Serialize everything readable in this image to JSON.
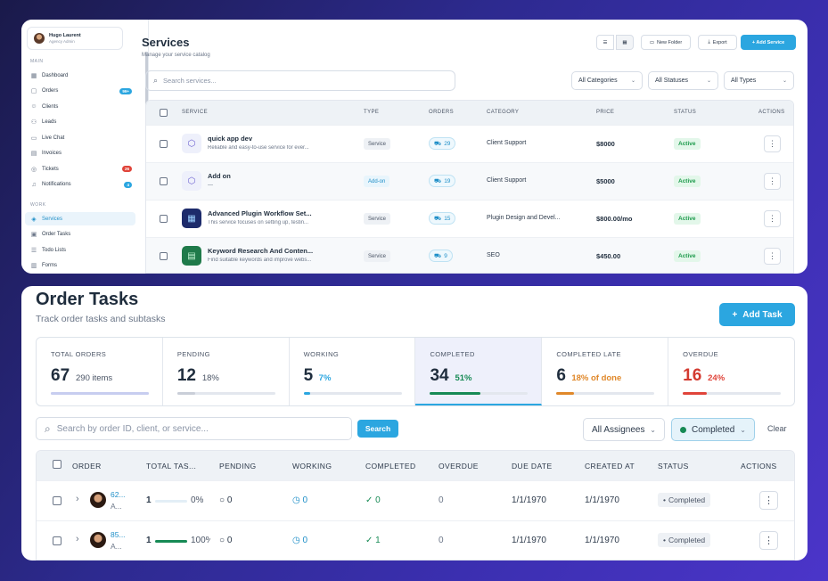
{
  "services_panel": {
    "user": {
      "name": "Hugo Laurent",
      "role": "Agency Admin"
    },
    "sections": {
      "main": "MAIN",
      "work": "WORK"
    },
    "nav_main": [
      {
        "label": "Dashboard",
        "icon": "grid-icon"
      },
      {
        "label": "Orders",
        "icon": "box-icon",
        "badge": "99+",
        "badge_color": "#2ba6e0"
      },
      {
        "label": "Clients",
        "icon": "users-icon"
      },
      {
        "label": "Leads",
        "icon": "user-plus-icon"
      },
      {
        "label": "Live Chat",
        "icon": "chat-icon"
      },
      {
        "label": "Invoices",
        "icon": "invoice-icon"
      },
      {
        "label": "Tickets",
        "icon": "ticket-icon",
        "badge": "26",
        "badge_color": "#e0443a"
      },
      {
        "label": "Notifications",
        "icon": "bell-icon",
        "badge": "4",
        "badge_color": "#2ba6e0"
      }
    ],
    "nav_work": [
      {
        "label": "Services",
        "icon": "cube-icon",
        "active": true
      },
      {
        "label": "Order Tasks",
        "icon": "clipboard-icon"
      },
      {
        "label": "Todo Lists",
        "icon": "checklist-icon"
      },
      {
        "label": "Forms",
        "icon": "form-icon"
      }
    ],
    "title": "Services",
    "subtitle": "Manage your service catalog",
    "toolbar": {
      "new_folder": "New Folder",
      "export": "Export",
      "add_service": "+ Add Service"
    },
    "search_placeholder": "Search services...",
    "filters": [
      "All Categories",
      "All Statuses",
      "All Types"
    ],
    "columns": [
      "SERVICE",
      "TYPE",
      "ORDERS",
      "CATEGORY",
      "PRICE",
      "STATUS",
      "ACTIONS"
    ],
    "rows": [
      {
        "name": "quick app dev",
        "desc": "Reliable and easy-to-use service for ever...",
        "type": "Service",
        "orders": "29",
        "category": "Client Support",
        "price": "$8000",
        "status": "Active"
      },
      {
        "name": "Add on",
        "desc": "—",
        "type": "Add-on",
        "orders": "19",
        "category": "Client Support",
        "price": "$5000",
        "status": "Active"
      },
      {
        "name": "Advanced Plugin Workflow Set...",
        "desc": "This service focuses on setting up, testin...",
        "type": "Service",
        "orders": "15",
        "category": "Plugin Design and Devel...",
        "price": "$800.00/mo",
        "status": "Active"
      },
      {
        "name": "Keyword Research And Conten...",
        "desc": "Find suitable keywords and improve webs...",
        "type": "Service",
        "orders": "9",
        "category": "SEO",
        "price": "$450.00",
        "status": "Active"
      }
    ]
  },
  "tasks_panel": {
    "title": "Order Tasks",
    "subtitle": "Track order tasks and subtasks",
    "add_task": "Add Task",
    "stats": [
      {
        "label": "TOTAL ORDERS",
        "value": "67",
        "sub": "290 items",
        "sub_color": "#4b5566",
        "val_color": "#1f2d3d",
        "bar_color": "#c7cdf0",
        "bar_pct": 100
      },
      {
        "label": "PENDING",
        "value": "12",
        "sub": "18%",
        "sub_color": "#4b5566",
        "val_color": "#1f2d3d",
        "bar_color": "#c9ced8",
        "bar_pct": 18
      },
      {
        "label": "WORKING",
        "value": "5",
        "sub": "7%",
        "sub_color": "#2ba6e0",
        "val_color": "#1f2d3d",
        "bar_color": "#2ba6e0",
        "bar_pct": 7
      },
      {
        "label": "COMPLETED",
        "value": "34",
        "sub": "51%",
        "sub_color": "#178a55",
        "val_color": "#1f2d3d",
        "bar_color": "#178a55",
        "bar_pct": 51
      },
      {
        "label": "COMPLETED LATE",
        "value": "6",
        "sub": "18% of done",
        "sub_color": "#e0882a",
        "val_color": "#1f2d3d",
        "bar_color": "#e0882a",
        "bar_pct": 18
      },
      {
        "label": "OVERDUE",
        "value": "16",
        "sub": "24%",
        "sub_color": "#e0443a",
        "val_color": "#d33a30",
        "bar_color": "#e0443a",
        "bar_pct": 24
      }
    ],
    "search_placeholder": "Search by order ID, client, or service...",
    "search_btn": "Search",
    "assignee_filter": "All Assignees",
    "status_filter": "Completed",
    "clear": "Clear",
    "columns": [
      "ORDER",
      "TOTAL TAS...",
      "PENDING",
      "WORKING",
      "COMPLETED",
      "OVERDUE",
      "DUE DATE",
      "CREATED AT",
      "STATUS",
      "ACTIONS"
    ],
    "rows": [
      {
        "id": "62...",
        "client": "A...",
        "total": "1",
        "pct": "0%",
        "pct_value": 0,
        "pending": "0",
        "working": "0",
        "completed": "0",
        "overdue": "0",
        "due": "1/1/1970",
        "created": "1/1/1970",
        "status": "Completed"
      },
      {
        "id": "85...",
        "client": "A...",
        "total": "1",
        "pct": "100%",
        "pct_value": 100,
        "pending": "0",
        "working": "0",
        "completed": "1",
        "overdue": "0",
        "due": "1/1/1970",
        "created": "1/1/1970",
        "status": "Completed"
      }
    ]
  }
}
